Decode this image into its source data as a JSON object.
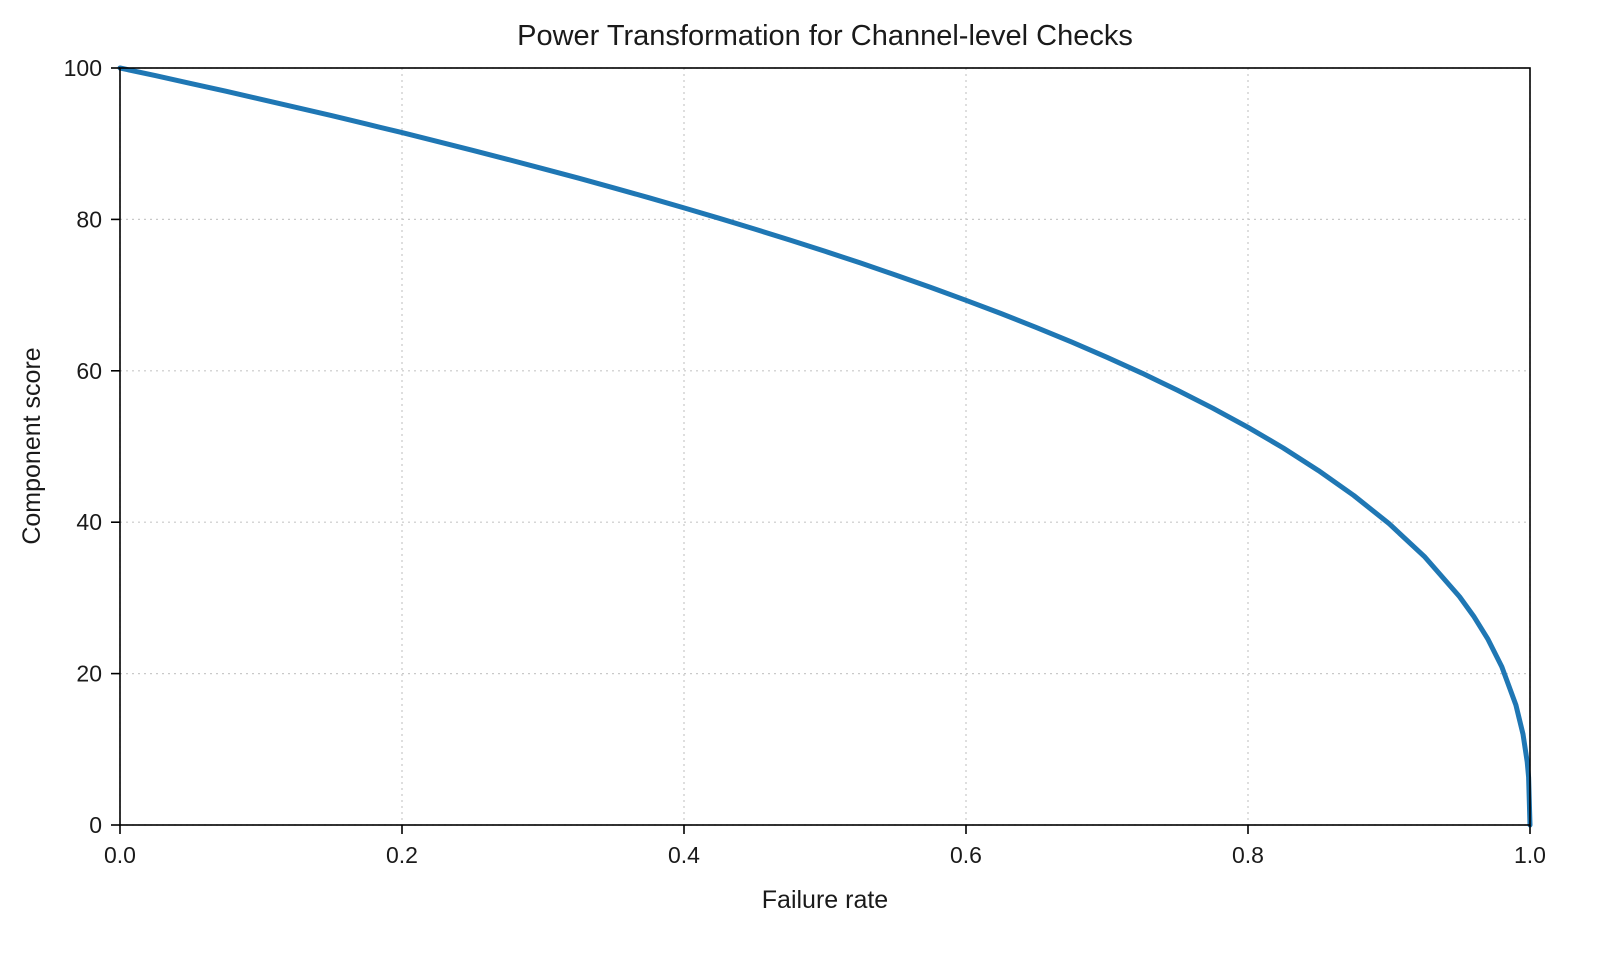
{
  "chart_data": {
    "type": "line",
    "title": "Power Transformation for Channel-level Checks",
    "xlabel": "Failure rate",
    "ylabel": "Component score",
    "xlim": [
      0.0,
      1.0
    ],
    "ylim": [
      0,
      100
    ],
    "x_ticks": [
      0.0,
      0.2,
      0.4,
      0.6,
      0.8,
      1.0
    ],
    "x_tick_labels": [
      "0.0",
      "0.2",
      "0.4",
      "0.6",
      "0.8",
      "1.0"
    ],
    "y_ticks": [
      0,
      20,
      40,
      60,
      80,
      100
    ],
    "y_tick_labels": [
      "0",
      "20",
      "40",
      "60",
      "80",
      "100"
    ],
    "grid": true,
    "grid_style": "dashed",
    "legend": "none",
    "line_color": "#1f77b4",
    "line_width": 5,
    "background_color": "#ffffff",
    "spine_color": "#000000",
    "grid_color": "#c9c9c9",
    "series": [
      {
        "name": "component_score_curve",
        "formula_note": "score = 100 * (1 - failure_rate)^0.4",
        "x": [
          0.0,
          0.025,
          0.05,
          0.075,
          0.1,
          0.125,
          0.15,
          0.175,
          0.2,
          0.225,
          0.25,
          0.275,
          0.3,
          0.325,
          0.35,
          0.375,
          0.4,
          0.425,
          0.45,
          0.475,
          0.5,
          0.525,
          0.55,
          0.575,
          0.6,
          0.625,
          0.65,
          0.675,
          0.7,
          0.725,
          0.75,
          0.775,
          0.8,
          0.825,
          0.85,
          0.875,
          0.9,
          0.925,
          0.95,
          0.96,
          0.97,
          0.98,
          0.99,
          0.995,
          0.998,
          0.999,
          1.0
        ],
        "y": [
          100.0,
          98.99,
          97.97,
          96.93,
          95.87,
          94.8,
          93.71,
          92.59,
          91.46,
          90.31,
          89.13,
          87.93,
          86.7,
          85.45,
          84.17,
          82.86,
          81.52,
          80.14,
          78.73,
          77.28,
          75.79,
          74.25,
          72.66,
          71.02,
          69.31,
          67.55,
          65.71,
          63.79,
          61.78,
          59.67,
          57.43,
          55.06,
          52.53,
          49.8,
          46.82,
          43.53,
          39.81,
          35.48,
          30.17,
          27.59,
          24.6,
          20.91,
          15.85,
          12.01,
          8.33,
          6.31,
          0.0
        ]
      }
    ]
  }
}
